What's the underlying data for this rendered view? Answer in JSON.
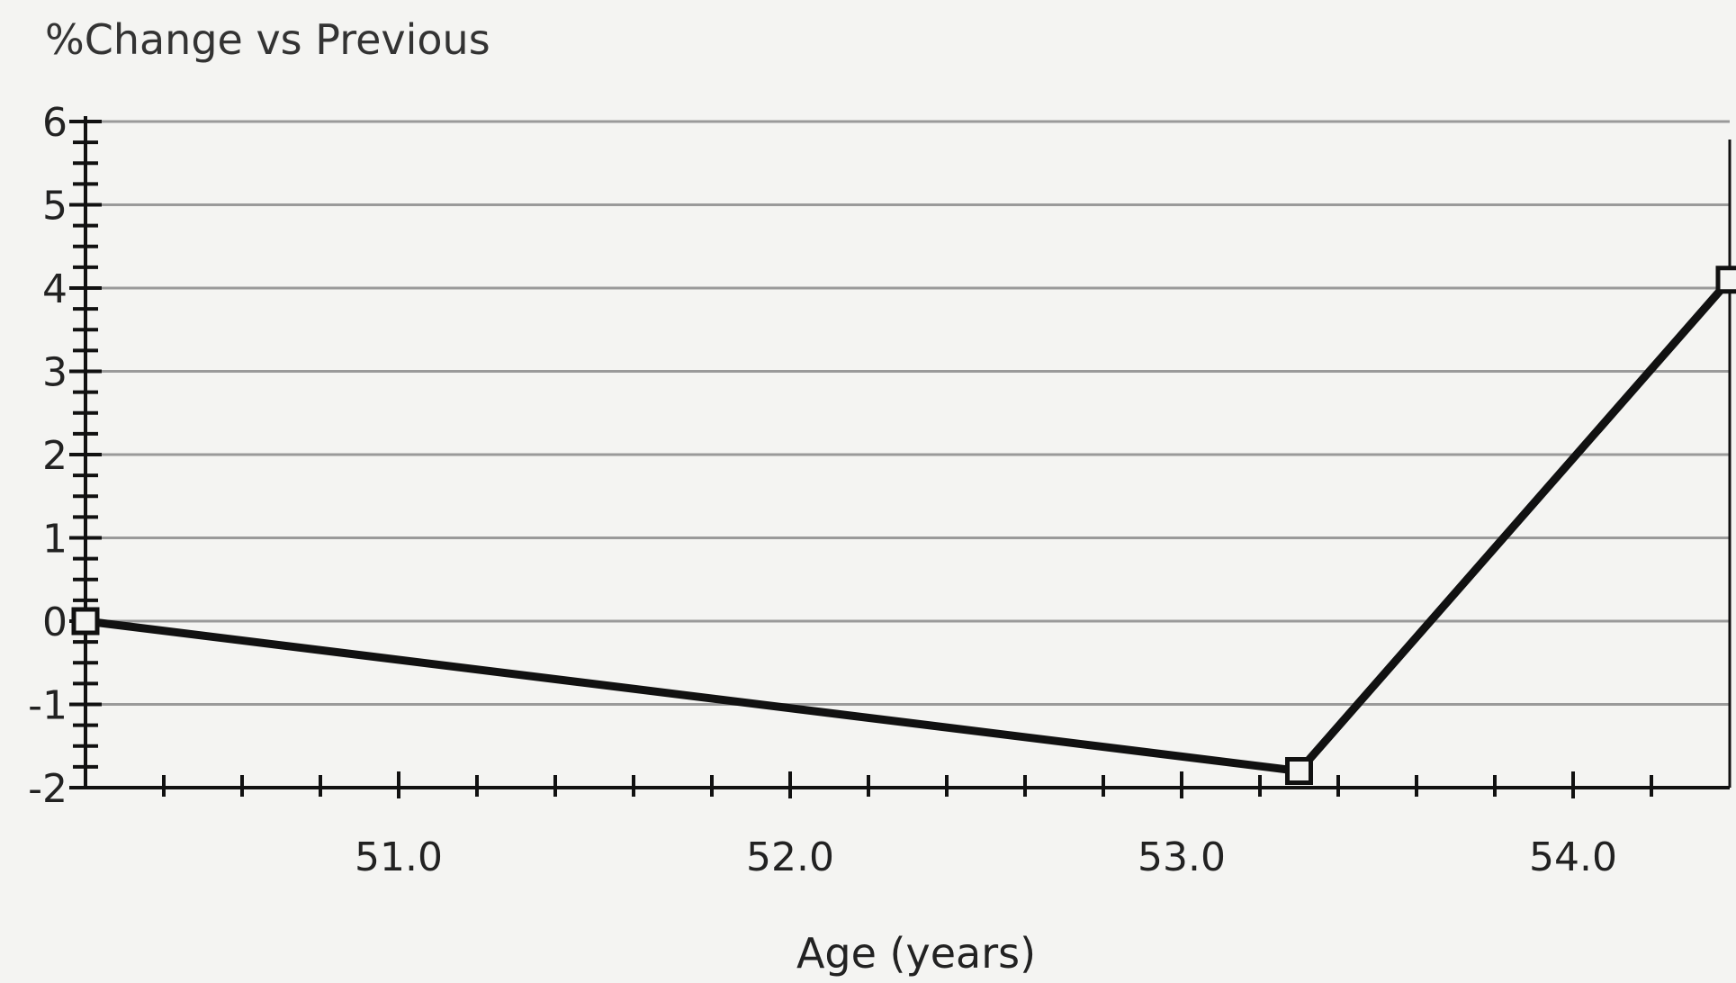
{
  "chart_data": {
    "type": "line",
    "title": "",
    "ylabel": "%Change vs Previous",
    "xlabel": "Age (years)",
    "xlim": [
      50.2,
      54.4
    ],
    "ylim": [
      -2,
      6
    ],
    "x_ticks": [
      51.0,
      52.0,
      53.0,
      54.0
    ],
    "x_tick_labels": [
      "51.0",
      "52.0",
      "53.0",
      "54.0"
    ],
    "x_minor_ticks": [
      50.4,
      50.6,
      50.8,
      51.0,
      51.2,
      51.4,
      51.6,
      51.8,
      52.0,
      52.2,
      52.4,
      52.6,
      52.8,
      53.0,
      53.2,
      53.4,
      53.6,
      53.8,
      54.0,
      54.2
    ],
    "y_ticks": [
      -2,
      -1,
      0,
      1,
      2,
      3,
      4,
      5,
      6
    ],
    "y_tick_labels": [
      "-2",
      "-1",
      "0",
      "1",
      "2",
      "3",
      "4",
      "5",
      "6"
    ],
    "grid": true,
    "series": [
      {
        "x": [
          50.2,
          53.3,
          54.4
        ],
        "y": [
          0.0,
          -1.8,
          4.1
        ],
        "marker": "square",
        "color": "#111111"
      }
    ]
  }
}
